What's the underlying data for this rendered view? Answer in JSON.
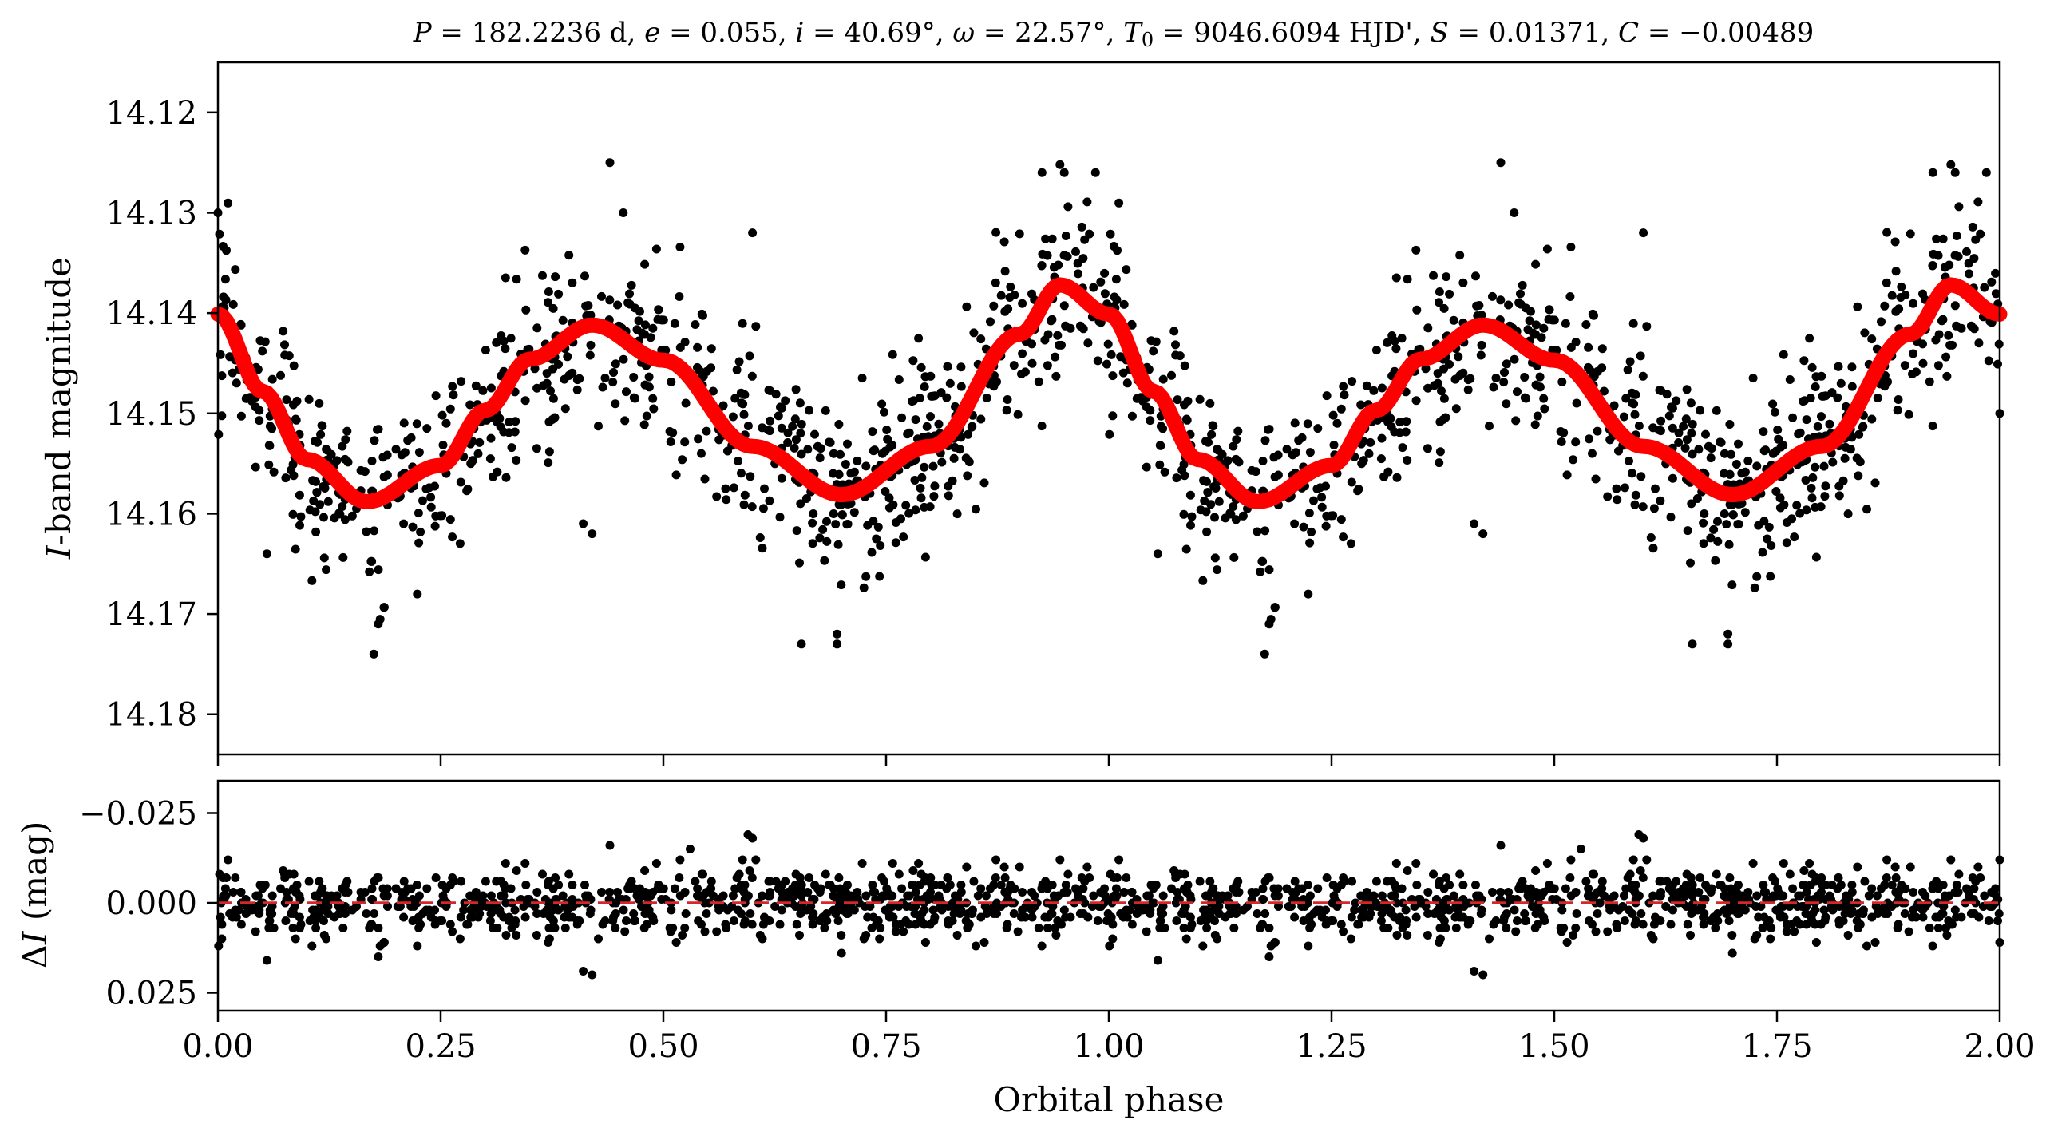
{
  "colors": {
    "points": "#000000",
    "model": "#ff0000",
    "zero_line": "#d62728",
    "axes": "#000000"
  },
  "chart_data": [
    {
      "type": "scatter",
      "panel": "top",
      "title": {
        "P": "182.2236 d",
        "e": "0.055",
        "i": "40.69°",
        "omega": "22.57°",
        "T0": "9046.6094 HJD'",
        "S": "0.01371",
        "C": "−0.00489"
      },
      "xlabel": "",
      "ylabel_italic": "I",
      "ylabel_rest": "-band magnitude",
      "xlim": [
        0,
        2
      ],
      "ylim": [
        14.184,
        14.115
      ],
      "y_inverted": true,
      "y_ticks": [
        "14.12",
        "14.13",
        "14.14",
        "14.15",
        "14.16",
        "14.17",
        "14.18"
      ],
      "x_ticks": [
        "0.00",
        "0.25",
        "0.50",
        "0.75",
        "1.00",
        "1.25",
        "1.50",
        "1.75",
        "2.00"
      ],
      "x_ticklabels_visible": false,
      "grid": false,
      "model": {
        "name": "",
        "mean_mag": 14.14838,
        "x": [
          0.0,
          0.05,
          0.1,
          0.167,
          0.25,
          0.3,
          0.35,
          0.42,
          0.5,
          0.6,
          0.7,
          0.8,
          0.9,
          0.945,
          1.0,
          1.05,
          1.1,
          1.167,
          1.25,
          1.3,
          1.35,
          1.42,
          1.5,
          1.6,
          1.7,
          1.8,
          1.9,
          1.945,
          2.0
        ],
        "y": [
          14.1401,
          14.1478,
          14.1546,
          14.1588,
          14.1552,
          14.1497,
          14.1446,
          14.1412,
          14.1447,
          14.1533,
          14.1581,
          14.1533,
          14.1421,
          14.1372,
          14.1401,
          14.1478,
          14.1546,
          14.1588,
          14.1552,
          14.1497,
          14.1446,
          14.1412,
          14.1447,
          14.1533,
          14.1581,
          14.1533,
          14.1421,
          14.1372,
          14.1401
        ]
      },
      "points": {
        "count_per_cycle": 780,
        "scatter_rms_mag": 0.0045,
        "repeats_with_period": 1.0,
        "outliers": [
          {
            "x": 0.44,
            "y": 14.125
          },
          {
            "x": 0.175,
            "y": 14.174
          },
          {
            "x": 0.18,
            "y": 14.171
          },
          {
            "x": 0.655,
            "y": 14.173
          },
          {
            "x": 0.695,
            "y": 14.172
          },
          {
            "x": 0.695,
            "y": 14.173
          },
          {
            "x": 0.455,
            "y": 14.13
          },
          {
            "x": 0.6,
            "y": 14.132
          },
          {
            "x": 0.0,
            "y": 14.13
          },
          {
            "x": 0.925,
            "y": 14.126
          },
          {
            "x": 0.95,
            "y": 14.126
          },
          {
            "x": 0.985,
            "y": 14.126
          },
          {
            "x": 0.41,
            "y": 14.161
          },
          {
            "x": 0.42,
            "y": 14.162
          },
          {
            "x": 0.055,
            "y": 14.164
          },
          {
            "x": 1.44,
            "y": 14.125
          },
          {
            "x": 1.175,
            "y": 14.174
          },
          {
            "x": 1.18,
            "y": 14.171
          },
          {
            "x": 1.655,
            "y": 14.173
          },
          {
            "x": 1.695,
            "y": 14.172
          },
          {
            "x": 1.695,
            "y": 14.173
          },
          {
            "x": 1.455,
            "y": 14.13
          },
          {
            "x": 1.6,
            "y": 14.132
          },
          {
            "x": 1.925,
            "y": 14.126
          },
          {
            "x": 1.95,
            "y": 14.126
          },
          {
            "x": 1.985,
            "y": 14.126
          },
          {
            "x": 1.41,
            "y": 14.161
          },
          {
            "x": 1.42,
            "y": 14.162
          },
          {
            "x": 1.055,
            "y": 14.164
          },
          {
            "x": 2.0,
            "y": 14.15
          }
        ]
      }
    },
    {
      "type": "scatter",
      "panel": "bottom",
      "xlabel": "Orbital phase",
      "ylabel_delta": "Δ",
      "ylabel_italic": "I",
      "ylabel_rest": " (mag)",
      "xlim": [
        0,
        2
      ],
      "ylim": [
        0.03,
        -0.034
      ],
      "y_inverted": true,
      "y_ticks": [
        "−0.025",
        "0.000",
        "0.025"
      ],
      "y_tick_values": [
        -0.025,
        0.0,
        0.025
      ],
      "x_ticks": [
        "0.00",
        "0.25",
        "0.50",
        "0.75",
        "1.00",
        "1.25",
        "1.50",
        "1.75",
        "2.00"
      ],
      "x_tick_values": [
        0,
        0.25,
        0.5,
        0.75,
        1.0,
        1.25,
        1.5,
        1.75,
        2.0
      ],
      "zero_line": 0.0,
      "grid": false,
      "residual_outliers": [
        {
          "x": 0.41,
          "y": 0.019
        },
        {
          "x": 0.42,
          "y": 0.02
        },
        {
          "x": 0.595,
          "y": -0.019
        },
        {
          "x": 0.6,
          "y": -0.018
        },
        {
          "x": 0.44,
          "y": -0.016
        },
        {
          "x": 0.055,
          "y": 0.016
        },
        {
          "x": 0.7,
          "y": 0.014
        },
        {
          "x": 0.18,
          "y": 0.015
        },
        {
          "x": 0.53,
          "y": -0.015
        },
        {
          "x": 1.41,
          "y": 0.019
        },
        {
          "x": 1.42,
          "y": 0.02
        },
        {
          "x": 1.595,
          "y": -0.019
        },
        {
          "x": 1.6,
          "y": -0.018
        },
        {
          "x": 1.44,
          "y": -0.016
        },
        {
          "x": 1.055,
          "y": 0.016
        },
        {
          "x": 1.7,
          "y": 0.014
        },
        {
          "x": 1.18,
          "y": 0.015
        },
        {
          "x": 1.53,
          "y": -0.015
        },
        {
          "x": 2.0,
          "y": -0.012
        },
        {
          "x": 2.0,
          "y": 0.011
        }
      ]
    }
  ]
}
